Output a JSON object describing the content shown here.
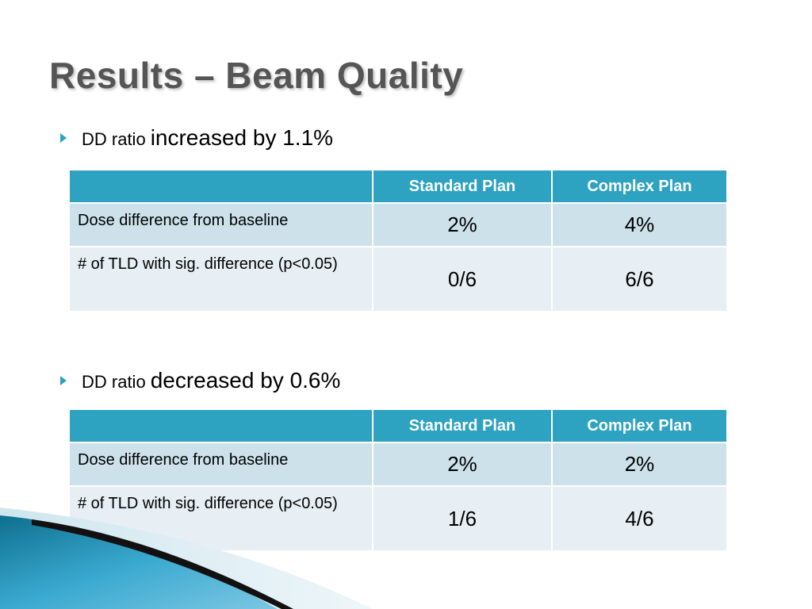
{
  "title": "Results – Beam Quality",
  "sections": [
    {
      "bullet_small": "DD ratio",
      "bullet_big": "increased by 1.1%",
      "table": {
        "header": [
          "",
          "Standard Plan",
          "Complex Plan"
        ],
        "rows": [
          {
            "label": "Dose difference from baseline",
            "standard": "2%",
            "complex": "4%"
          },
          {
            "label": "# of TLD with sig. difference (p<0.05)",
            "standard": "0/6",
            "complex": "6/6"
          }
        ]
      }
    },
    {
      "bullet_small": "DD ratio",
      "bullet_big": "decreased by 0.6%",
      "table": {
        "header": [
          "",
          "Standard Plan",
          "Complex Plan"
        ],
        "rows": [
          {
            "label": "Dose difference from baseline",
            "standard": "2%",
            "complex": "2%"
          },
          {
            "label": "# of TLD with sig. difference (p<0.05)",
            "standard": "1/6",
            "complex": "4/6"
          }
        ]
      }
    }
  ],
  "colors": {
    "accent": "#2da2c1",
    "row_dark": "#cce1ea",
    "row_light": "#e7eff4",
    "title": "#555555"
  }
}
